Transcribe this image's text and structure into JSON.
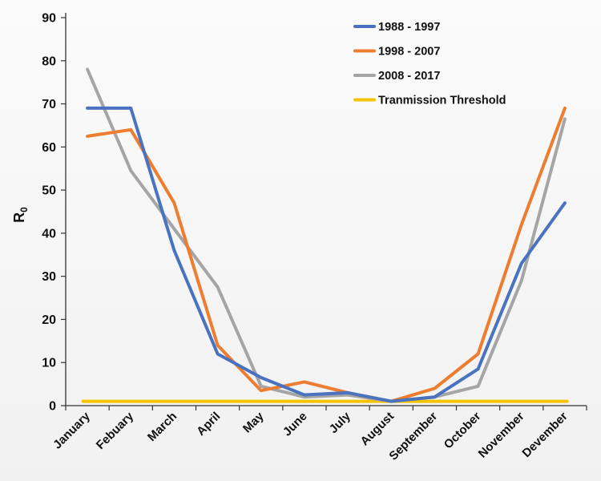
{
  "chart_data": {
    "type": "line",
    "title": "",
    "xlabel": "",
    "ylabel": "R0",
    "ylabel_main": "R",
    "ylabel_sub": "0",
    "ylim": [
      0,
      90
    ],
    "yticks": [
      0,
      10,
      20,
      30,
      40,
      50,
      60,
      70,
      80,
      90
    ],
    "grid": false,
    "legend_position": "top-right",
    "categories": [
      "January",
      "Febuary",
      "March",
      "April",
      "May",
      "June",
      "July",
      "August",
      "September",
      "October",
      "November",
      "Devember"
    ],
    "series": [
      {
        "name": "1988 - 1997",
        "color": "#4a73bf",
        "values": [
          69,
          69,
          36,
          12,
          6.5,
          2.5,
          3,
          1,
          2,
          8.5,
          33,
          47
        ]
      },
      {
        "name": "1998 - 2007",
        "color": "#ed7d31",
        "values": [
          62.5,
          64,
          47,
          14,
          3.5,
          5.5,
          3,
          1,
          4,
          12,
          42,
          69
        ]
      },
      {
        "name": "2008 - 2017",
        "color": "#a5a5a5",
        "values": [
          78,
          54.5,
          41,
          27.5,
          4.5,
          2,
          2.5,
          1,
          2,
          4.5,
          29,
          66.5
        ]
      },
      {
        "name": "Tranmission Threshold",
        "color": "#f5c400",
        "values": [
          1,
          1,
          1,
          1,
          1,
          1,
          1,
          1,
          1,
          1,
          1,
          1
        ]
      }
    ]
  }
}
